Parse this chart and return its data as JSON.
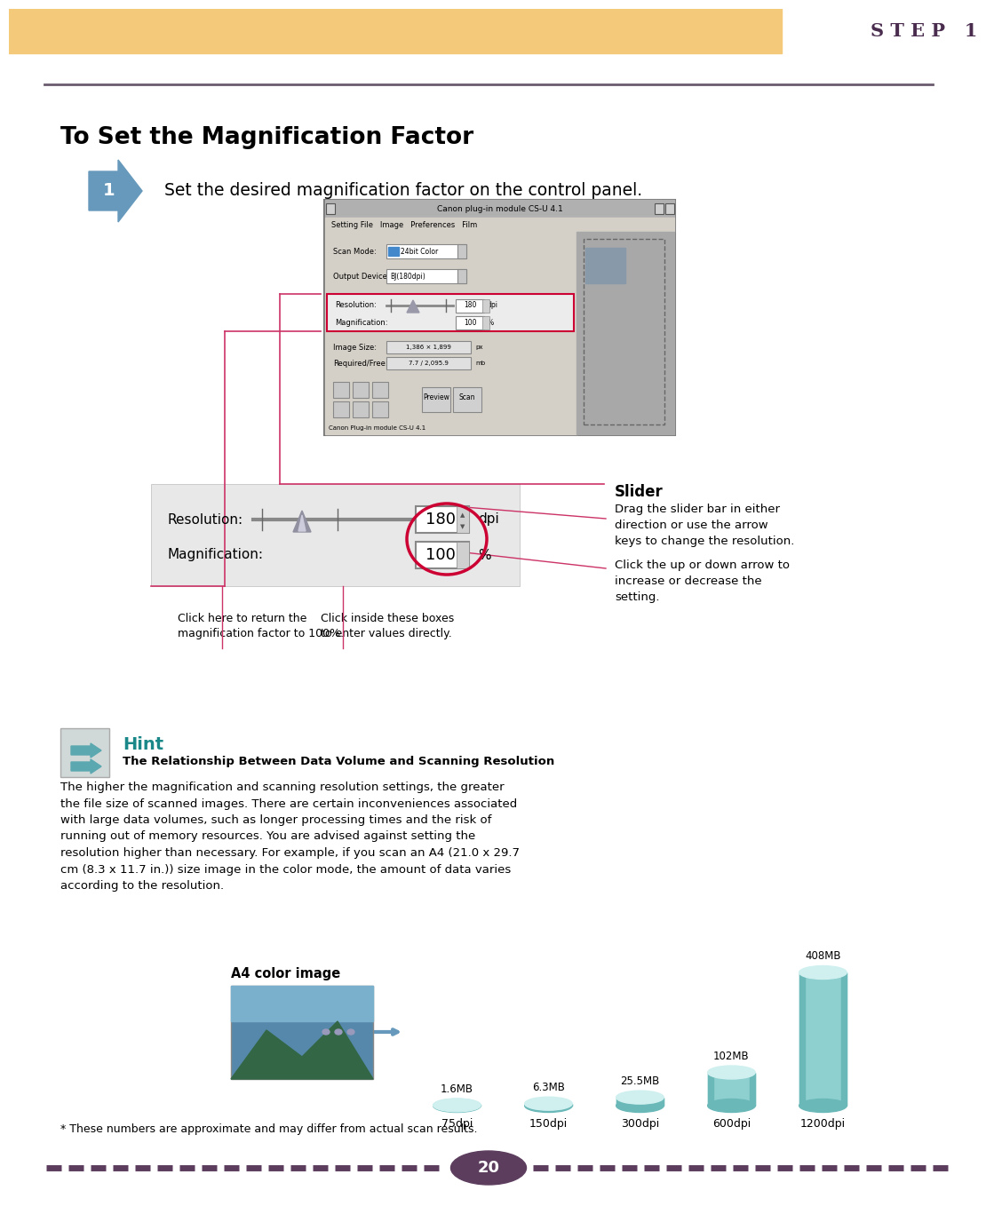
{
  "page_bg": "#ffffff",
  "header_bar_color": "#f5c97a",
  "step_text": "S T E P   1",
  "step_color": "#4a2d4e",
  "top_rule_color": "#6b5b6e",
  "section_title": "To Set the Magnification Factor",
  "step1_text": "Set the desired magnification factor on the control panel.",
  "bar_categories": [
    "75dpi",
    "150dpi",
    "300dpi",
    "600dpi",
    "1200dpi"
  ],
  "bar_values": [
    1.6,
    6.3,
    25.5,
    102,
    408
  ],
  "bar_labels": [
    "1.6MB",
    "6.3MB",
    "25.5MB",
    "102MB",
    "408MB"
  ],
  "dashed_line_color": "#5c3d5e",
  "page_num": "20",
  "page_num_color": "#5c3d5e",
  "hint_body_lines": [
    "The higher the magnification and scanning resolution settings, the greater",
    "the file size of scanned images. There are certain inconveniences associated",
    "with large data volumes, such as longer processing times and the risk of",
    "running out of memory resources. You are advised against setting the",
    "resolution higher than necessary. For example, if you scan an A4 (21.0 x 29.7",
    "cm (8.3 x 11.7 in.)) size image in the color mode, the amount of data varies",
    "according to the resolution."
  ]
}
